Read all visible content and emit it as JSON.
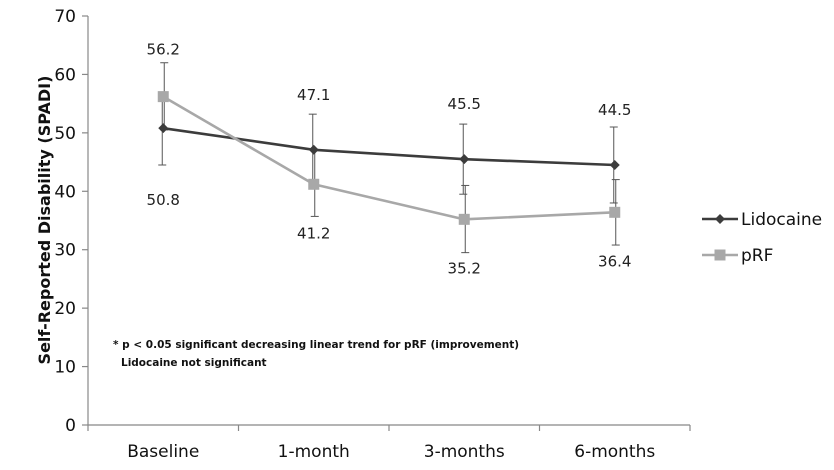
{
  "chart_data": {
    "type": "line",
    "ylabel": "Self-Reported Disability (SPADI)",
    "xlabel": "",
    "ylim": [
      0,
      70
    ],
    "yticks": [
      0,
      10,
      20,
      30,
      40,
      50,
      60,
      70
    ],
    "categories": [
      "Baseline",
      "1-month",
      "3-months",
      "6-months"
    ],
    "grid": false,
    "legend_position": "right",
    "series": [
      {
        "name": "Lidocaine",
        "color": "#3c3c3c",
        "marker": "diamond",
        "values": [
          50.8,
          47.1,
          45.5,
          44.5
        ],
        "labels": [
          "50.8",
          "47.1",
          "45.5",
          "44.5"
        ],
        "error_low": [
          44.5,
          41.0,
          39.5,
          38.0
        ],
        "error_high": [
          57.0,
          53.2,
          51.5,
          51.0
        ]
      },
      {
        "name": "pRF",
        "color": "#a8a8a8",
        "marker": "square",
        "values": [
          56.2,
          41.2,
          35.2,
          36.4
        ],
        "labels": [
          "56.2",
          "41.2",
          "35.2",
          "36.4"
        ],
        "error_low": [
          50.5,
          35.7,
          29.5,
          30.8
        ],
        "error_high": [
          62.0,
          47.0,
          41.0,
          42.0
        ]
      }
    ],
    "annotations": [
      "* p < 0.05 significant decreasing linear trend for pRF (improvement)",
      "Lidocaine not significant"
    ]
  }
}
